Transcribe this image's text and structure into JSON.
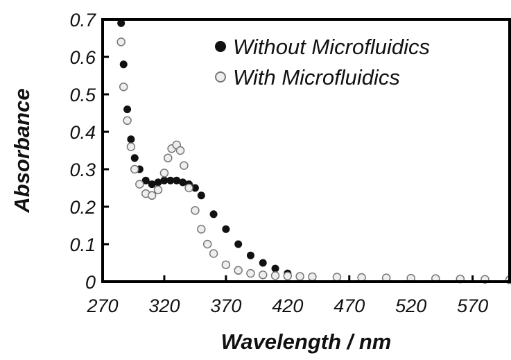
{
  "chart_data": {
    "type": "scatter",
    "xlabel": "Wavelength / nm",
    "ylabel": "Absorbance",
    "xlim": [
      270,
      600
    ],
    "ylim": [
      0,
      0.7
    ],
    "x_ticks": [
      270,
      320,
      370,
      420,
      470,
      520,
      570
    ],
    "y_ticks": [
      0,
      0.1,
      0.2,
      0.3,
      0.4,
      0.5,
      0.6,
      0.7
    ],
    "x_tick_labels": [
      "270",
      "320",
      "370",
      "420",
      "470",
      "520",
      "570"
    ],
    "y_tick_labels": [
      "0",
      "0.1",
      "0.2",
      "0.3",
      "0.4",
      "0.5",
      "0.6",
      "0.7"
    ],
    "grid": false,
    "legend_position": "top-right",
    "series": [
      {
        "name": "Without Microfluidics",
        "color": "#111111",
        "marker": "filled-circle",
        "x": [
          285,
          287,
          290,
          293,
          296,
          300,
          305,
          310,
          315,
          320,
          325,
          330,
          335,
          340,
          345,
          350,
          360,
          370,
          380,
          390,
          400,
          410,
          420,
          430,
          440
        ],
        "y": [
          0.69,
          0.58,
          0.46,
          0.38,
          0.33,
          0.3,
          0.27,
          0.26,
          0.265,
          0.27,
          0.27,
          0.27,
          0.265,
          0.26,
          0.25,
          0.23,
          0.18,
          0.14,
          0.1,
          0.07,
          0.05,
          0.035,
          0.022,
          0.015,
          0.01
        ]
      },
      {
        "name": "With Microfluidics",
        "color": "#777777",
        "marker": "hollow-circle",
        "x": [
          285,
          287,
          290,
          293,
          296,
          300,
          305,
          310,
          315,
          320,
          323,
          326,
          330,
          333,
          336,
          340,
          345,
          350,
          355,
          360,
          370,
          380,
          390,
          400,
          410,
          420,
          430,
          440,
          460,
          480,
          500,
          520,
          540,
          560,
          580,
          600
        ],
        "y": [
          0.64,
          0.52,
          0.43,
          0.36,
          0.3,
          0.26,
          0.235,
          0.23,
          0.245,
          0.29,
          0.33,
          0.355,
          0.365,
          0.35,
          0.31,
          0.25,
          0.19,
          0.14,
          0.1,
          0.075,
          0.045,
          0.03,
          0.022,
          0.018,
          0.016,
          0.015,
          0.014,
          0.013,
          0.012,
          0.011,
          0.01,
          0.009,
          0.008,
          0.007,
          0.006,
          0.005
        ]
      }
    ]
  }
}
